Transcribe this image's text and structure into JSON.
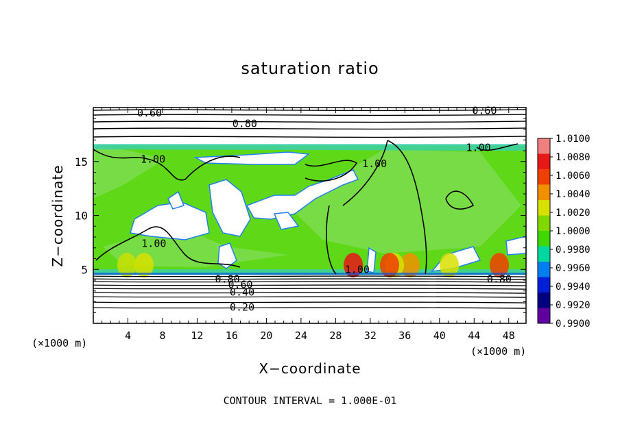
{
  "chart_data": {
    "type": "heatmap",
    "title": "saturation ratio",
    "xlabel": "X−coordinate",
    "ylabel": "Z−coordinate",
    "x_unit": "(×1000 m)",
    "y_unit": "(×1000 m)",
    "xlim": [
      0,
      50
    ],
    "ylim": [
      0,
      20
    ],
    "x_ticks": [
      4,
      8,
      12,
      16,
      20,
      24,
      28,
      32,
      36,
      40,
      44,
      48
    ],
    "y_ticks": [
      5,
      10,
      15
    ],
    "colorbar": {
      "levels": [
        "1.0100",
        "1.0080",
        "1.0060",
        "1.0040",
        "1.0020",
        "1.0000",
        "0.9980",
        "0.9960",
        "0.9940",
        "0.9920",
        "0.9900"
      ],
      "colors": [
        "#f08080",
        "#e81818",
        "#f04000",
        "#f09000",
        "#d8e000",
        "#80d800",
        "#40d800",
        "#00d8a0",
        "#0080f0",
        "#0020d8",
        "#000080",
        "#6000a0"
      ]
    },
    "regions": {
      "cloud_top_km": 16.5,
      "cloud_base_km": 4.5,
      "background_value": 1.0
    },
    "contour_labels": [
      {
        "text": "0.60",
        "x": 6.5,
        "z": 19.5
      },
      {
        "text": "0.80",
        "x": 17.5,
        "z": 18.5
      },
      {
        "text": "0.60",
        "x": 45.2,
        "z": 19.7
      },
      {
        "text": "1.00",
        "x": 44.5,
        "z": 16.3
      },
      {
        "text": "1.00",
        "x": 6.9,
        "z": 15.2
      },
      {
        "text": "1.00",
        "x": 32.5,
        "z": 14.8
      },
      {
        "text": "1.00",
        "x": 7.0,
        "z": 7.4
      },
      {
        "text": "1.00",
        "x": 30.5,
        "z": 5.0
      },
      {
        "text": "0.80",
        "x": 15.5,
        "z": 4.1
      },
      {
        "text": "0.60",
        "x": 17.0,
        "z": 3.6
      },
      {
        "text": "0.40",
        "x": 17.2,
        "z": 2.9
      },
      {
        "text": "0.20",
        "x": 17.2,
        "z": 1.5
      },
      {
        "text": "0.80",
        "x": 46.9,
        "z": 4.1
      }
    ],
    "footer": "CONTOUR INTERVAL = 1.000E-01"
  }
}
